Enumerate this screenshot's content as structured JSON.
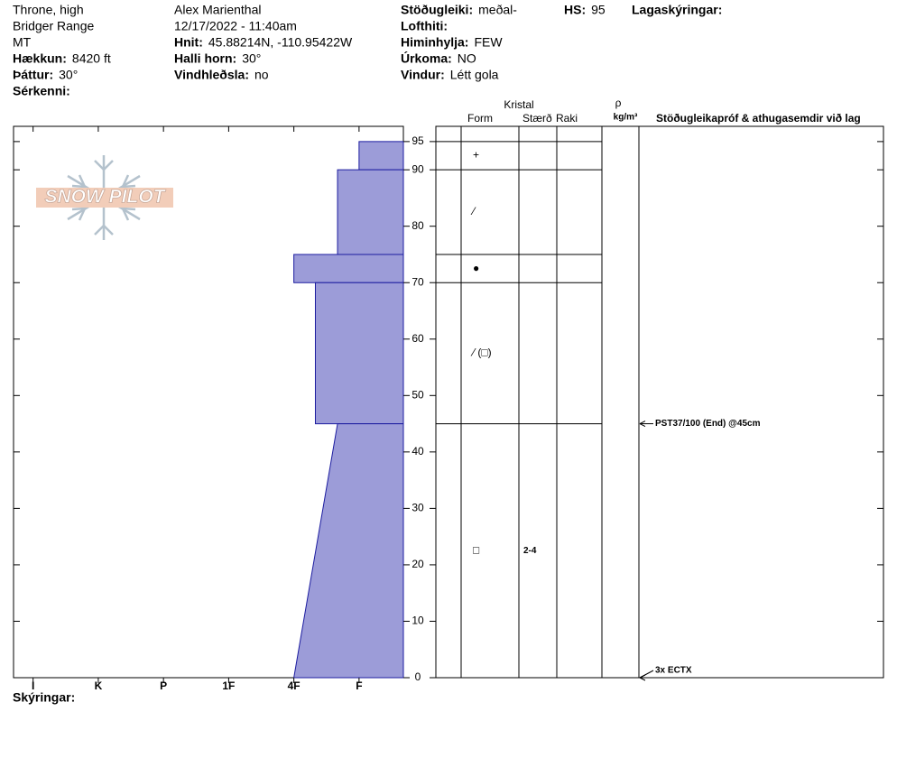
{
  "header": {
    "location": [
      "Throne, high",
      "Bridger Range",
      "MT"
    ],
    "left": [
      {
        "label": "Hækkun:",
        "value": "8420 ft"
      },
      {
        "label": "Þáttur:",
        "value": "30°"
      },
      {
        "label": "Sérkenni:"
      }
    ],
    "observer": "Alex Marienthal",
    "datetime": "12/17/2022 - 11:40am",
    "middle": [
      {
        "label": "Hnit:",
        "value": "45.88214N, -110.95422W"
      },
      {
        "label": "Halli horn:",
        "value": "30°"
      },
      {
        "label": "Vindhleðsla:",
        "value": "no"
      }
    ],
    "right": [
      {
        "label": "Stöðugleiki:",
        "value": "meðal-"
      },
      {
        "label": "Lofthiti:"
      },
      {
        "label": "Himinhylja:",
        "value": "FEW"
      },
      {
        "label": "Úrkoma:",
        "value": "NO"
      },
      {
        "label": "Vindur:",
        "value": "Létt gola"
      }
    ],
    "hs": {
      "label": "HS:",
      "value": 95
    },
    "layer_notes_label": "Lagaskýringar:"
  },
  "logo": "SNOW PILOT",
  "profile": {
    "depth_lim": [
      0,
      97.7
    ],
    "depth_ticks": [
      0,
      10,
      20,
      30,
      40,
      50,
      60,
      70,
      80,
      90,
      95
    ],
    "hardness_lim": [
      6.3,
      0.32
    ],
    "hardness_ticks": [
      {
        "value": 6,
        "label": "I"
      },
      {
        "value": 5,
        "label": "K"
      },
      {
        "value": 4,
        "label": "P"
      },
      {
        "value": 3,
        "label": "1F"
      },
      {
        "value": 2,
        "label": "4F"
      },
      {
        "value": 1,
        "label": "F"
      }
    ],
    "color": "#9c9cd8",
    "legend_label": "Skýringar:"
  },
  "columns": {
    "crystal": "Kristal",
    "form": "Form",
    "size": "Stærð",
    "moisture": "Raki",
    "density_symbol": "ρ",
    "density_unit": "kg/m³",
    "tests": "Stöðugleikapróf & athugasemdir við lag"
  },
  "layers": [
    {
      "top": 95,
      "bottom": 90,
      "hardness_top": 1,
      "hardness_bottom": 1,
      "form": "+"
    },
    {
      "top": 90,
      "bottom": 75,
      "hardness_top": 1.33,
      "hardness_bottom": 1.33,
      "form": "⁄"
    },
    {
      "top": 75,
      "bottom": 70,
      "hardness_top": 2,
      "hardness_bottom": 2,
      "form": "●"
    },
    {
      "top": 70,
      "bottom": 45,
      "hardness_top": 1.67,
      "hardness_bottom": 1.67,
      "form": "⁄ (□)"
    },
    {
      "top": 45,
      "bottom": 0,
      "hardness_top": 1.33,
      "hardness_bottom": 2,
      "form": "□",
      "size": "2-4"
    }
  ],
  "tests": [
    {
      "depth": 45,
      "text": "PST37/100 (End) @45cm"
    },
    {
      "depth": 0,
      "text": "3x ECTX"
    }
  ]
}
